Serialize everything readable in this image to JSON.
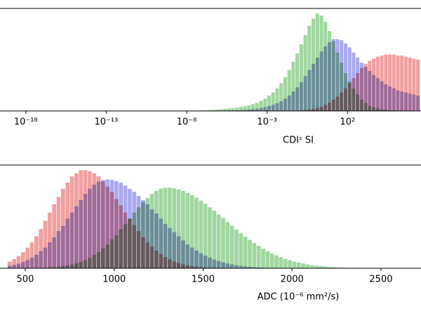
{
  "chart_data": [
    {
      "type": "histogram",
      "xscale": "log",
      "xlabel": "CDIˢ SI",
      "xlim": [
        2.5e-20,
        3670000.0
      ],
      "ylim": [
        0,
        100
      ],
      "xticks": [
        {
          "value": 1e-18,
          "label": "10⁻¹⁸"
        },
        {
          "value": 1e-13,
          "label": "10⁻¹³"
        },
        {
          "value": 1e-08,
          "label": "10⁻⁸"
        },
        {
          "value": 0.001,
          "label": "10⁻³"
        },
        {
          "value": 100,
          "label": "10²"
        }
      ],
      "bins": [
        1e-08,
        1.778e-08,
        3.162e-08,
        5.623e-08,
        1e-07,
        1.778e-07,
        3.162e-07,
        5.623e-07,
        1e-06,
        1.778e-06,
        3.162e-06,
        5.623e-06,
        1e-05,
        1.778e-05,
        3.162e-05,
        5.623e-05,
        0.0001,
        0.0001778,
        0.0003162,
        0.0005623,
        0.001,
        0.001778,
        0.003162,
        0.005623,
        0.01,
        0.01778,
        0.03162,
        0.05623,
        0.1,
        0.1778,
        0.3162,
        0.5623,
        1,
        1.778,
        3.162,
        5.623,
        10,
        17.78,
        31.62,
        56.23,
        100,
        177.8,
        316.2,
        562.3,
        1000,
        1778,
        3162,
        5623,
        10000.0,
        17780.0,
        31620.0,
        56230.0,
        100000.0,
        177800.0,
        316200.0,
        562300.0,
        1000000.0,
        1778000.0,
        3162000.0
      ],
      "series": [
        {
          "color": "#a0d7a0",
          "values": [
            0.3,
            0.4,
            0.5,
            0.6,
            0.8,
            1.0,
            1.2,
            1.4,
            1.7,
            2.0,
            2.4,
            2.8,
            3.3,
            3.9,
            4.6,
            5.5,
            6.6,
            8,
            10,
            12,
            15,
            18,
            22,
            27,
            33,
            40,
            48,
            56,
            65,
            74,
            83,
            90,
            95,
            93,
            87,
            78,
            68,
            57,
            47,
            37,
            29,
            22,
            16,
            11,
            8,
            5,
            3.5,
            2.5,
            1.7,
            1.2,
            0.8,
            0.5,
            0.3,
            0.2,
            0.1,
            0.1,
            0.1,
            0
          ]
        },
        {
          "color": "#aaaaf0",
          "values": [
            0.1,
            0.1,
            0.1,
            0.1,
            0.2,
            0.2,
            0.2,
            0.3,
            0.3,
            0.4,
            0.5,
            0.6,
            0.7,
            0.9,
            1.1,
            1.4,
            1.8,
            2.3,
            3,
            3.8,
            4.8,
            6,
            7.5,
            9.5,
            12,
            15,
            19,
            23,
            28,
            34,
            40,
            46,
            52,
            58,
            63,
            67,
            70,
            70,
            69,
            66,
            62,
            57,
            52,
            47,
            43,
            39,
            35,
            32,
            29,
            26,
            24,
            22,
            20,
            19,
            18,
            17,
            16,
            15
          ]
        },
        {
          "color": "#f0a0a0",
          "values": [
            0,
            0,
            0,
            0,
            0,
            0,
            0,
            0,
            0,
            0,
            0,
            0,
            0,
            0,
            0,
            0,
            0,
            0,
            0,
            0,
            0,
            0,
            0,
            0,
            0,
            0,
            0,
            0,
            0.5,
            1,
            1.5,
            2,
            3,
            4,
            6,
            8,
            11,
            14,
            18,
            22,
            27,
            32,
            37,
            42,
            46,
            49,
            51,
            53,
            54,
            55,
            55,
            55,
            54,
            54,
            53,
            52,
            51,
            50
          ]
        }
      ]
    },
    {
      "type": "histogram",
      "xlabel": "ADC (10⁻⁶ mm²/s)",
      "xlim": [
        358,
        2725
      ],
      "ylim": [
        0,
        100
      ],
      "xticks": [
        500,
        1000,
        1500,
        2000,
        2500
      ],
      "bins": [
        400,
        425,
        450,
        475,
        500,
        525,
        550,
        575,
        600,
        625,
        650,
        675,
        700,
        725,
        750,
        775,
        800,
        825,
        850,
        875,
        900,
        925,
        950,
        975,
        1000,
        1025,
        1050,
        1075,
        1100,
        1125,
        1150,
        1175,
        1200,
        1225,
        1250,
        1275,
        1300,
        1325,
        1350,
        1375,
        1400,
        1425,
        1450,
        1475,
        1500,
        1525,
        1550,
        1575,
        1600,
        1625,
        1650,
        1675,
        1700,
        1725,
        1750,
        1775,
        1800,
        1825,
        1850,
        1875,
        1900,
        1925,
        1950,
        1975,
        2000,
        2025,
        2050,
        2075,
        2100,
        2125,
        2150,
        2175,
        2200,
        2225,
        2250,
        2275,
        2300,
        2325,
        2350,
        2375,
        2400,
        2425,
        2450,
        2475,
        2500,
        2525,
        2550,
        2575,
        2600
      ],
      "series": [
        {
          "color": "#a0d7a0",
          "values": [
            0,
            0,
            0,
            0.1,
            0.1,
            0.2,
            0.2,
            0.4,
            0.5,
            0.7,
            1.0,
            1.5,
            2.0,
            2.7,
            3.6,
            4.8,
            6.2,
            8.0,
            10.2,
            12.8,
            15.8,
            19.3,
            23,
            28,
            32,
            38,
            43,
            48,
            54,
            59,
            64,
            68,
            72,
            75,
            77,
            78,
            78,
            77.5,
            76.5,
            75,
            73,
            71,
            68.5,
            65.5,
            62.5,
            59,
            55.7,
            52,
            48.6,
            44.9,
            41,
            37.4,
            34,
            30.6,
            27.5,
            24.5,
            21.7,
            19,
            16.6,
            14.4,
            12.5,
            10.7,
            9.1,
            7.8,
            6.5,
            5.5,
            4.6,
            3.8,
            3.1,
            2.5,
            2.1,
            1.7,
            1.3,
            1.1,
            0.85,
            0.67,
            0.5,
            0.4,
            0.3,
            0.25,
            0.2,
            0.15,
            0.1,
            0.1,
            0.1,
            0.1,
            0.05,
            0.05
          ]
        },
        {
          "color": "#aaaaf0",
          "values": [
            2.4,
            3.3,
            4.5,
            6.0,
            7.9,
            10.3,
            13.1,
            16.5,
            20,
            25,
            30,
            36,
            41,
            48,
            54,
            60,
            66,
            72,
            77,
            81,
            84,
            85.5,
            86,
            85.6,
            84.5,
            83,
            80,
            77,
            74,
            70,
            66,
            62,
            57,
            53,
            48,
            43,
            39,
            35,
            31,
            27,
            23,
            20,
            17.2,
            14.6,
            12.3,
            10.3,
            8.5,
            7.0,
            5.7,
            4.6,
            3.7,
            2.9,
            2.3,
            1.8,
            1.4,
            1.1,
            0.8,
            0.6,
            0.5,
            0.4,
            0.3,
            0.2,
            0.2,
            0.1,
            0.1,
            0.1,
            0.1,
            0.1,
            0.1,
            0.1,
            0,
            0,
            0,
            0,
            0,
            0,
            0,
            0,
            0,
            0,
            0,
            0,
            0,
            0,
            0,
            0,
            0,
            0
          ]
        },
        {
          "color": "#f0a0a0",
          "values": [
            6.4,
            8.8,
            11.8,
            15.5,
            20,
            25,
            31,
            38,
            46,
            54,
            62,
            69,
            77,
            83,
            89,
            92,
            95,
            95,
            94,
            92,
            89,
            84,
            79,
            74,
            67,
            61,
            54,
            48,
            42,
            36,
            30,
            25,
            21,
            17,
            13.8,
            10.9,
            8.6,
            6.6,
            5.1,
            3.8,
            2.9,
            2.1,
            1.5,
            1.1,
            0.8,
            0.6,
            0.4,
            0.3,
            0.2,
            0.1,
            0.1,
            0.1,
            0.1,
            0,
            0,
            0,
            0,
            0,
            0,
            0,
            0,
            0,
            0,
            0,
            0,
            0,
            0,
            0,
            0,
            0,
            0,
            0,
            0,
            0,
            0,
            0,
            0,
            0,
            0,
            0,
            0,
            0,
            0,
            0,
            0,
            0,
            0,
            0
          ]
        }
      ]
    }
  ]
}
